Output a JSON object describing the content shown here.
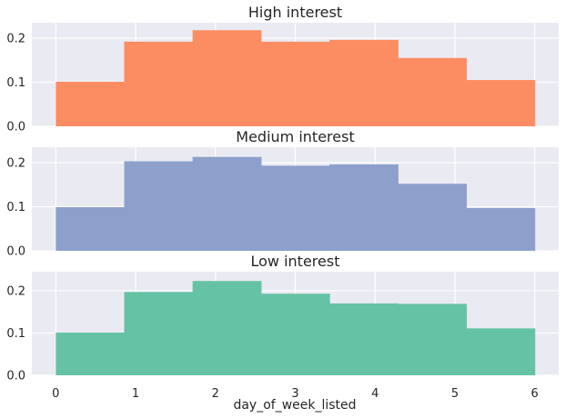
{
  "chart_data": {
    "type": "bar",
    "xlabel": "day_of_week_listed",
    "xlim": [
      -0.3,
      6.3
    ],
    "xticks": [
      0,
      1,
      2,
      3,
      4,
      5,
      6
    ],
    "bin_edges": [
      0.0,
      0.857,
      1.714,
      2.571,
      3.429,
      4.286,
      5.143,
      6.0
    ],
    "panels": [
      {
        "title": "High interest",
        "color": "#fc8d62",
        "ylim": [
          0,
          0.235
        ],
        "yticks": [
          0.0,
          0.1,
          0.2
        ],
        "values": [
          0.101,
          0.192,
          0.218,
          0.192,
          0.196,
          0.155,
          0.105
        ]
      },
      {
        "title": "Medium interest",
        "color": "#8da0cb",
        "ylim": [
          0,
          0.235
        ],
        "yticks": [
          0.0,
          0.1,
          0.2
        ],
        "values": [
          0.099,
          0.203,
          0.213,
          0.193,
          0.196,
          0.152,
          0.097
        ]
      },
      {
        "title": "Low interest",
        "color": "#66c2a5",
        "ylim": [
          0,
          0.245
        ],
        "yticks": [
          0.0,
          0.1,
          0.2
        ],
        "values": [
          0.101,
          0.197,
          0.223,
          0.193,
          0.17,
          0.169,
          0.111
        ]
      }
    ]
  }
}
